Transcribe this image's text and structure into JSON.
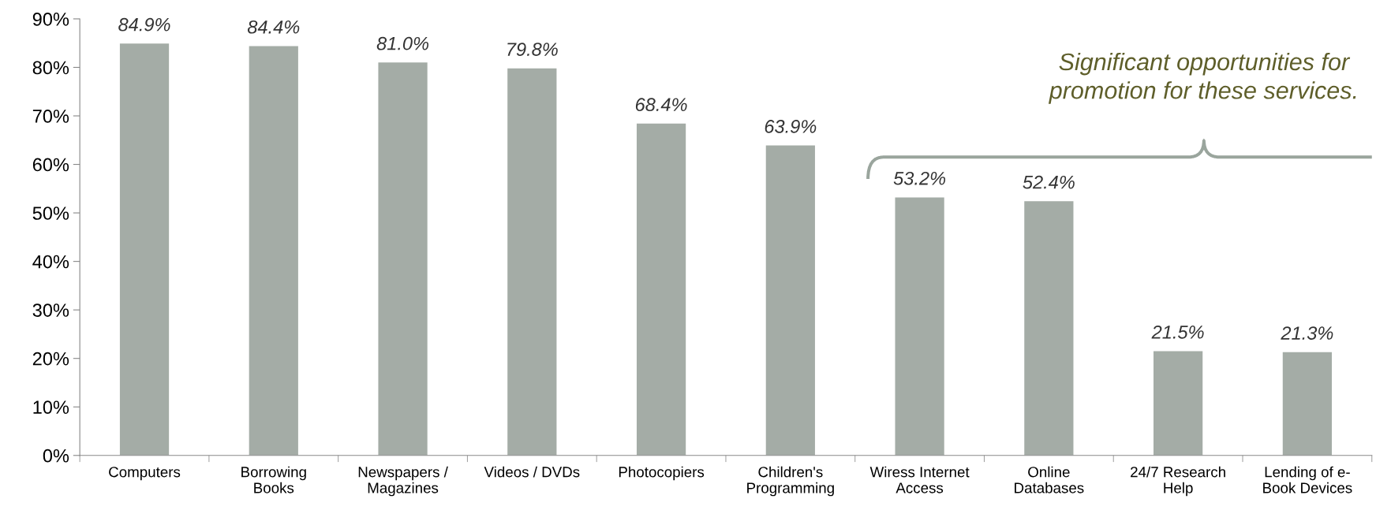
{
  "chart_data": {
    "type": "bar",
    "categories": [
      "Computers",
      "Borrowing\nBooks",
      "Newspapers /\nMagazines",
      "Videos / DVDs",
      "Photocopiers",
      "Children's\nProgramming",
      "Wiress Internet\nAccess",
      "Online\nDatabases",
      "24/7 Research\nHelp",
      "Lending of e-\nBook Devices"
    ],
    "values": [
      84.9,
      84.4,
      81.0,
      79.8,
      68.4,
      63.9,
      53.2,
      52.4,
      21.5,
      21.3
    ],
    "value_labels": [
      "84.9%",
      "84.4%",
      "81.0%",
      "79.8%",
      "68.4%",
      "63.9%",
      "53.2%",
      "52.4%",
      "21.5%",
      "21.3%"
    ],
    "color": "#a4aca6",
    "ylim": [
      0,
      90
    ],
    "yticks": [
      {
        "value": 0,
        "label": "0%"
      },
      {
        "value": 10,
        "label": "10%"
      },
      {
        "value": 20,
        "label": "20%"
      },
      {
        "value": 30,
        "label": "30%"
      },
      {
        "value": 40,
        "label": "40%"
      },
      {
        "value": 50,
        "label": "50%"
      },
      {
        "value": 60,
        "label": "60%"
      },
      {
        "value": 70,
        "label": "70%"
      },
      {
        "value": 80,
        "label": "80%"
      },
      {
        "value": 90,
        "label": "90%"
      }
    ],
    "annotations": [
      "Significant opportunities for\npromotion for these services."
    ],
    "grid": false,
    "legend": false
  }
}
